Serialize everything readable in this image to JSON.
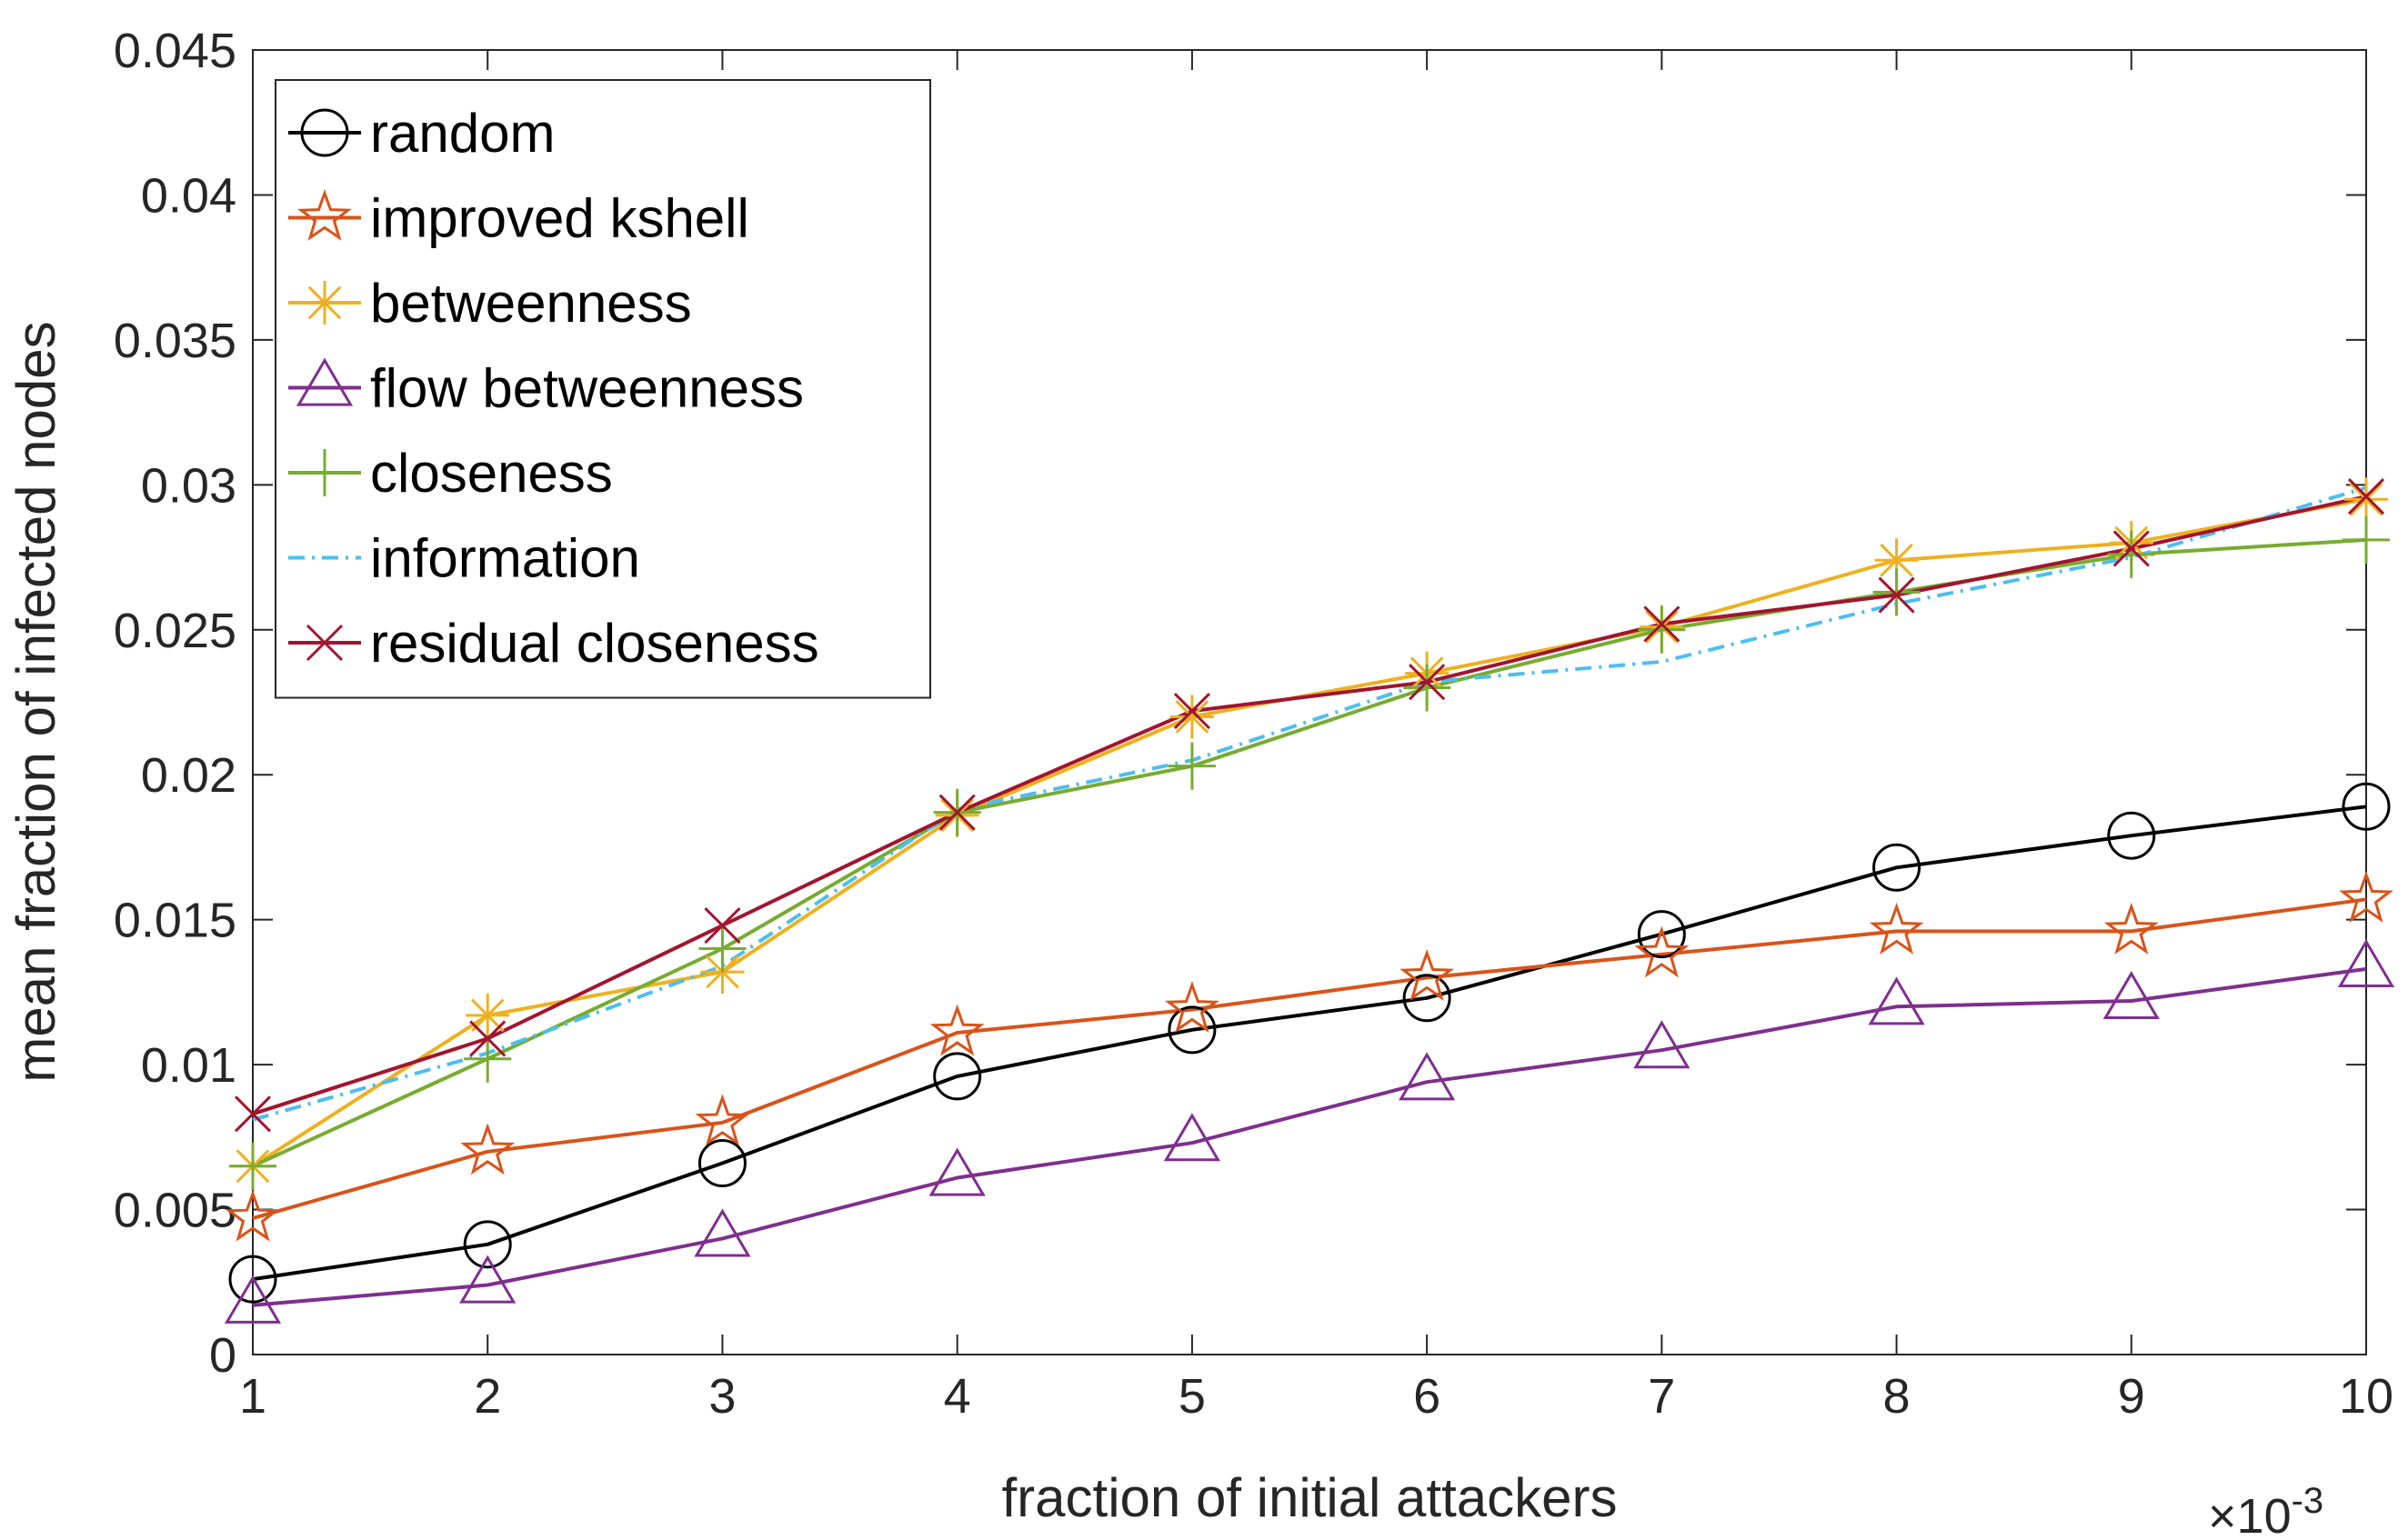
{
  "chart_data": {
    "type": "line",
    "xlabel": "fraction of initial attackers",
    "ylabel": "mean fraction of infected nodes",
    "x_exponent_label": {
      "base": "×10",
      "exp": "-3"
    },
    "x": [
      1,
      2,
      3,
      4,
      5,
      6,
      7,
      8,
      9,
      10
    ],
    "x_tick_labels": [
      "1",
      "2",
      "3",
      "4",
      "5",
      "6",
      "7",
      "8",
      "9",
      "10"
    ],
    "xlim": [
      1,
      10
    ],
    "ylim": [
      0,
      0.045
    ],
    "y_ticks": [
      0,
      0.005,
      0.01,
      0.015,
      0.02,
      0.025,
      0.03,
      0.035,
      0.04,
      0.045
    ],
    "y_tick_labels": [
      "0",
      "0.005",
      "0.01",
      "0.015",
      "0.02",
      "0.025",
      "0.03",
      "0.035",
      "0.04",
      "0.045"
    ],
    "grid": false,
    "legend_position": "top-left",
    "series": [
      {
        "name": "random",
        "color": "#000000",
        "marker": "circle",
        "dash": "solid",
        "values": [
          0.0026,
          0.0038,
          0.0066,
          0.0096,
          0.0112,
          0.0123,
          0.0145,
          0.0168,
          0.0179,
          0.0189
        ]
      },
      {
        "name": "improved kshell",
        "color": "#D95319",
        "marker": "star",
        "dash": "solid",
        "values": [
          0.0047,
          0.007,
          0.008,
          0.0111,
          0.0119,
          0.013,
          0.0138,
          0.0146,
          0.0146,
          0.0157
        ]
      },
      {
        "name": "betweenness",
        "color": "#EDB120",
        "marker": "asterisk",
        "dash": "solid",
        "values": [
          0.0065,
          0.0117,
          0.0132,
          0.0186,
          0.022,
          0.0235,
          0.0251,
          0.0274,
          0.028,
          0.0295
        ]
      },
      {
        "name": "flow betweenness",
        "color": "#7E2F8E",
        "marker": "triangle",
        "dash": "solid",
        "values": [
          0.0017,
          0.0024,
          0.004,
          0.0061,
          0.0073,
          0.0094,
          0.0105,
          0.012,
          0.0122,
          0.0133
        ]
      },
      {
        "name": "closeness",
        "color": "#77AC30",
        "marker": "plus",
        "dash": "solid",
        "values": [
          0.0065,
          0.0102,
          0.014,
          0.0187,
          0.0203,
          0.023,
          0.025,
          0.0263,
          0.0276,
          0.0281
        ]
      },
      {
        "name": "information",
        "color": "#4DBEEE",
        "marker": "none",
        "dash": "dashdot",
        "values": [
          0.0081,
          0.0104,
          0.0134,
          0.0188,
          0.0205,
          0.0232,
          0.0239,
          0.0259,
          0.0275,
          0.0299
        ]
      },
      {
        "name": "residual closeness",
        "color": "#A2142F",
        "marker": "x",
        "dash": "solid",
        "values": [
          0.0083,
          0.0109,
          0.0148,
          0.0187,
          0.0222,
          0.0232,
          0.0252,
          0.0262,
          0.0278,
          0.0296
        ]
      }
    ]
  }
}
